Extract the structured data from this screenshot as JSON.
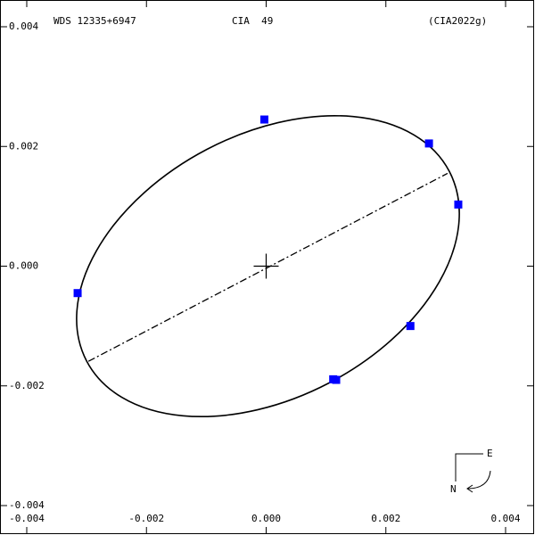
{
  "chart_data": {
    "type": "scatter",
    "title": "WDS 12335+6947",
    "subtitle": "CIA  49",
    "reference": "(CIA2022g)",
    "compass": {
      "east": "E",
      "north": "N"
    },
    "xlim": [
      -0.004,
      0.004
    ],
    "ylim": [
      -0.004,
      0.004
    ],
    "xticks": [
      -0.004,
      -0.002,
      {
        "value": 0,
        "label": "0.000"
      },
      0.002,
      0.004
    ],
    "yticks": [
      -0.004,
      -0.002,
      {
        "value": 0,
        "label": "0.000"
      },
      0.002,
      0.004
    ],
    "orbit": {
      "cx": 3e-05,
      "cy": 0,
      "rx": 0.003419,
      "ry": 0.002202,
      "angle": 27.6,
      "color": "#000000"
    },
    "node_line": {
      "x": [
        -0.00297,
        0.00303
      ],
      "y": [
        -0.00159,
        0.00155
      ]
    },
    "series": [
      {
        "color": "#0000ff",
        "x": [
          -3e-05,
          0.00272,
          0.00321,
          -0.00315,
          0.00241,
          0.00112,
          0.00117
        ],
        "y": [
          0.00245,
          0.00205,
          0.00103,
          -0.00045,
          -0.001,
          -0.00189,
          -0.0019
        ]
      }
    ]
  }
}
